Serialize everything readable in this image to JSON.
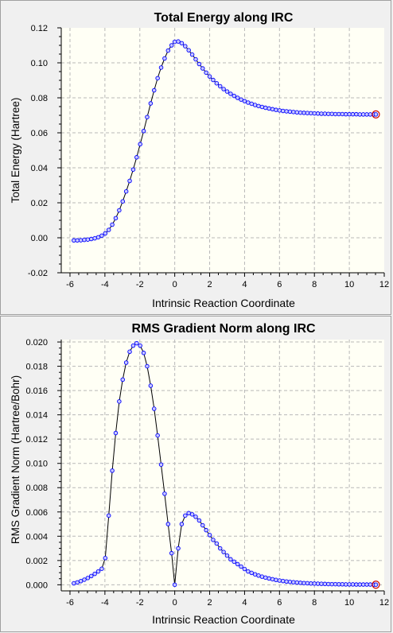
{
  "chart_data": [
    {
      "type": "line",
      "title": "Total Energy along IRC",
      "xlabel": "Intrinsic Reaction Coordinate",
      "ylabel": "Total Energy (Hartree)",
      "xlim": [
        -6.5,
        12
      ],
      "ylim": [
        -0.02,
        0.12
      ],
      "xticks": [
        "-6",
        "-4",
        "-2",
        "0",
        "2",
        "4",
        "6",
        "8",
        "10",
        "12"
      ],
      "yticks": [
        "-0.02",
        "0.00",
        "0.02",
        "0.04",
        "0.06",
        "0.08",
        "0.10",
        "0.12"
      ],
      "grid": true,
      "line_color": "#000000",
      "marker_color": "#0000ff",
      "highlight_color": "#cc0000",
      "x": [
        -5.78,
        -5.58,
        -5.38,
        -5.18,
        -4.98,
        -4.78,
        -4.58,
        -4.38,
        -4.18,
        -3.98,
        -3.78,
        -3.58,
        -3.38,
        -3.18,
        -2.98,
        -2.78,
        -2.58,
        -2.38,
        -2.18,
        -1.98,
        -1.78,
        -1.58,
        -1.38,
        -1.18,
        -0.98,
        -0.78,
        -0.58,
        -0.38,
        -0.18,
        0.0,
        0.2,
        0.4,
        0.6,
        0.8,
        1.0,
        1.2,
        1.4,
        1.6,
        1.8,
        2.0,
        2.2,
        2.4,
        2.6,
        2.8,
        3.0,
        3.2,
        3.4,
        3.6,
        3.8,
        4.0,
        4.2,
        4.4,
        4.6,
        4.8,
        5.0,
        5.2,
        5.4,
        5.6,
        5.8,
        6.0,
        6.2,
        6.4,
        6.6,
        6.8,
        7.0,
        7.2,
        7.4,
        7.6,
        7.8,
        8.0,
        8.2,
        8.4,
        8.6,
        8.8,
        9.0,
        9.2,
        9.4,
        9.6,
        9.8,
        10.0,
        10.2,
        10.4,
        10.6,
        10.8,
        11.0,
        11.2,
        11.4,
        11.52
      ],
      "values": [
        -0.0015,
        -0.0015,
        -0.0014,
        -0.0012,
        -0.001,
        -0.0007,
        -0.0003,
        0.0003,
        0.0012,
        0.0025,
        0.0045,
        0.0075,
        0.0112,
        0.0157,
        0.0208,
        0.0265,
        0.0325,
        0.039,
        0.046,
        0.0535,
        0.061,
        0.069,
        0.0768,
        0.0843,
        0.0912,
        0.0973,
        0.1025,
        0.107,
        0.11,
        0.112,
        0.1122,
        0.1112,
        0.1095,
        0.1072,
        0.1047,
        0.102,
        0.0993,
        0.0968,
        0.0944,
        0.0922,
        0.0902,
        0.0883,
        0.0866,
        0.085,
        0.0836,
        0.0823,
        0.0811,
        0.08,
        0.079,
        0.0781,
        0.0773,
        0.0766,
        0.0759,
        0.0753,
        0.0748,
        0.0743,
        0.0739,
        0.0735,
        0.0731,
        0.0728,
        0.0725,
        0.0723,
        0.0721,
        0.0719,
        0.0717,
        0.0715,
        0.0714,
        0.0713,
        0.0712,
        0.0711,
        0.071,
        0.0709,
        0.0709,
        0.0708,
        0.0708,
        0.0707,
        0.0707,
        0.0707,
        0.0706,
        0.0706,
        0.0706,
        0.0706,
        0.0705,
        0.0705,
        0.0705,
        0.0705,
        0.0705,
        0.0705
      ]
    },
    {
      "type": "line",
      "title": "RMS Gradient Norm along IRC",
      "xlabel": "Intrinsic Reaction Coordinate",
      "ylabel": "RMS Gradient Norm (Hartree/Bohr)",
      "xlim": [
        -6.5,
        12
      ],
      "ylim": [
        -0.0005,
        0.0202
      ],
      "xticks": [
        "-6",
        "-4",
        "-2",
        "0",
        "2",
        "4",
        "6",
        "8",
        "10",
        "12"
      ],
      "yticks": [
        "0.000",
        "0.002",
        "0.004",
        "0.006",
        "0.008",
        "0.010",
        "0.012",
        "0.014",
        "0.016",
        "0.018",
        "0.020"
      ],
      "grid": true,
      "line_color": "#000000",
      "marker_color": "#0000ff",
      "highlight_color": "#cc0000",
      "x": [
        -5.78,
        -5.58,
        -5.38,
        -5.18,
        -4.98,
        -4.78,
        -4.58,
        -4.38,
        -4.18,
        -3.98,
        -3.78,
        -3.58,
        -3.38,
        -3.18,
        -2.98,
        -2.78,
        -2.58,
        -2.38,
        -2.18,
        -1.98,
        -1.78,
        -1.58,
        -1.38,
        -1.18,
        -0.98,
        -0.78,
        -0.58,
        -0.38,
        -0.18,
        0.0,
        0.2,
        0.4,
        0.6,
        0.8,
        1.0,
        1.2,
        1.4,
        1.6,
        1.8,
        2.0,
        2.2,
        2.4,
        2.6,
        2.8,
        3.0,
        3.2,
        3.4,
        3.6,
        3.8,
        4.0,
        4.2,
        4.4,
        4.6,
        4.8,
        5.0,
        5.2,
        5.4,
        5.6,
        5.8,
        6.0,
        6.2,
        6.4,
        6.6,
        6.8,
        7.0,
        7.2,
        7.4,
        7.6,
        7.8,
        8.0,
        8.2,
        8.4,
        8.6,
        8.8,
        9.0,
        9.2,
        9.4,
        9.6,
        9.8,
        10.0,
        10.2,
        10.4,
        10.6,
        10.8,
        11.0,
        11.2,
        11.4,
        11.52
      ],
      "values": [
        0.00012,
        0.0002,
        0.0003,
        0.00042,
        0.00056,
        0.00072,
        0.0009,
        0.0011,
        0.00132,
        0.0022,
        0.0057,
        0.0094,
        0.0125,
        0.0151,
        0.0169,
        0.0183,
        0.0192,
        0.0197,
        0.0199,
        0.0197,
        0.0191,
        0.018,
        0.0164,
        0.0145,
        0.0123,
        0.0099,
        0.0075,
        0.005,
        0.0026,
        0.0,
        0.003,
        0.005,
        0.0057,
        0.0059,
        0.0058,
        0.0056,
        0.0053,
        0.0049,
        0.0045,
        0.0041,
        0.0037,
        0.0034,
        0.003,
        0.0027,
        0.0024,
        0.0021,
        0.0019,
        0.0017,
        0.0015,
        0.0013,
        0.0011,
        0.00098,
        0.00086,
        0.00076,
        0.00067,
        0.00059,
        0.00052,
        0.00046,
        0.0004,
        0.00035,
        0.00031,
        0.00027,
        0.00024,
        0.00021,
        0.00019,
        0.00016,
        0.00014,
        0.00013,
        0.00011,
        0.0001,
        9e-05,
        8e-05,
        7e-05,
        6e-05,
        5e-05,
        5e-05,
        4e-05,
        4e-05,
        3e-05,
        3e-05,
        3e-05,
        2e-05,
        2e-05,
        2e-05,
        2e-05,
        2e-05,
        1e-05,
        1e-05
      ]
    }
  ]
}
